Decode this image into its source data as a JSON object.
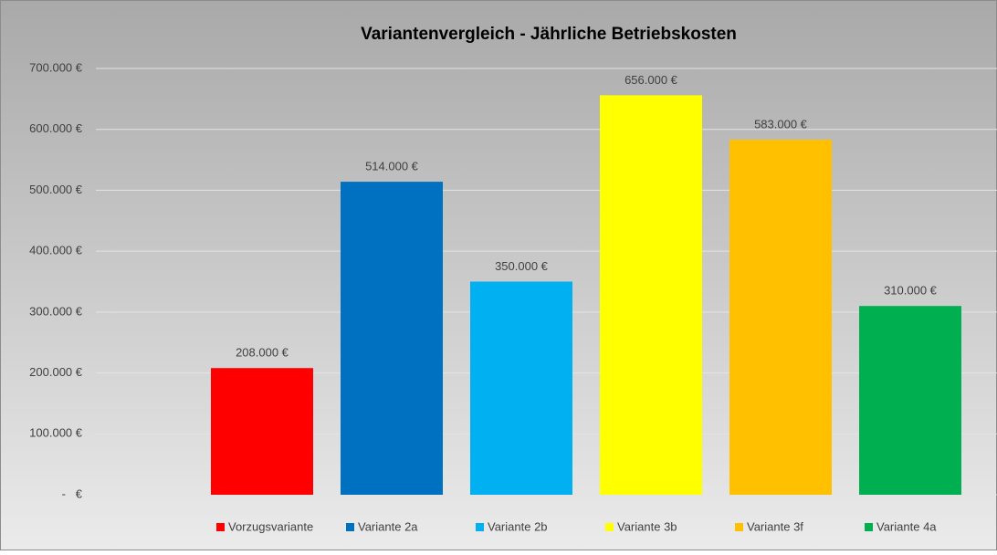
{
  "chart_data": {
    "type": "bar",
    "title": "Variantenvergleich - Jährliche Betriebskosten",
    "categories": [
      null
    ],
    "series": [
      {
        "name": "Vorzugsvariante",
        "color": "#ff0000",
        "values": [
          208000
        ],
        "value_labels": [
          "208.000 €"
        ]
      },
      {
        "name": "Variante 2a",
        "color": "#0070c0",
        "values": [
          514000
        ],
        "value_labels": [
          "514.000 €"
        ]
      },
      {
        "name": "Variante 2b",
        "color": "#00b0f0",
        "values": [
          350000
        ],
        "value_labels": [
          "350.000 €"
        ]
      },
      {
        "name": "Variante 3b",
        "color": "#ffff00",
        "values": [
          656000
        ],
        "value_labels": [
          "656.000 €"
        ]
      },
      {
        "name": "Variante 3f",
        "color": "#ffc000",
        "values": [
          583000
        ],
        "value_labels": [
          "583.000 €"
        ]
      },
      {
        "name": "Variante 4a",
        "color": "#00b050",
        "values": [
          310000
        ],
        "value_labels": [
          "310.000 €"
        ]
      }
    ],
    "ylim": [
      0,
      700000
    ],
    "yticks": [
      {
        "value": 0,
        "label": "-   €"
      },
      {
        "value": 100000,
        "label": "100.000 €"
      },
      {
        "value": 200000,
        "label": "200.000 €"
      },
      {
        "value": 300000,
        "label": "300.000 €"
      },
      {
        "value": 400000,
        "label": "400.000 €"
      },
      {
        "value": 500000,
        "label": "500.000 €"
      },
      {
        "value": 600000,
        "label": "600.000 €"
      },
      {
        "value": 700000,
        "label": "700.000 €"
      }
    ],
    "grid": true,
    "legend": "bottom"
  }
}
